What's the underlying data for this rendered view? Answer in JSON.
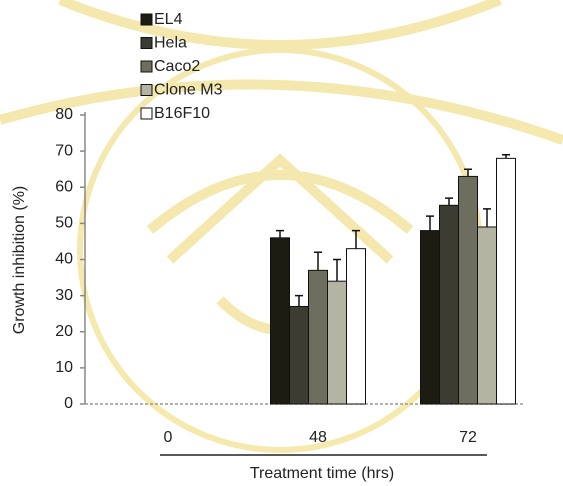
{
  "chart_data": {
    "type": "bar",
    "ylabel": "Growth inhibition (%)",
    "xlabel": "Treatment time (hrs)",
    "categories": [
      "0",
      "48",
      "72"
    ],
    "series": [
      {
        "name": "EL4",
        "color": "#1c1c12",
        "values": [
          null,
          46,
          48
        ],
        "errors": [
          null,
          2,
          4
        ]
      },
      {
        "name": "Hela",
        "color": "#3c3c32",
        "values": [
          null,
          27,
          55
        ],
        "errors": [
          null,
          3,
          2
        ]
      },
      {
        "name": "Caco2",
        "color": "#6e6e5e",
        "values": [
          null,
          37,
          63
        ],
        "errors": [
          null,
          5,
          2
        ]
      },
      {
        "name": "Clone M3",
        "color": "#b4b4a2",
        "values": [
          null,
          34,
          49
        ],
        "errors": [
          null,
          6,
          5
        ]
      },
      {
        "name": "B16F10",
        "color": "#ffffff",
        "values": [
          null,
          43,
          68
        ],
        "errors": [
          null,
          5,
          1
        ]
      }
    ],
    "ylim": [
      0,
      80
    ],
    "yticks": [
      0,
      10,
      20,
      30,
      40,
      50,
      60,
      70,
      80
    ]
  }
}
